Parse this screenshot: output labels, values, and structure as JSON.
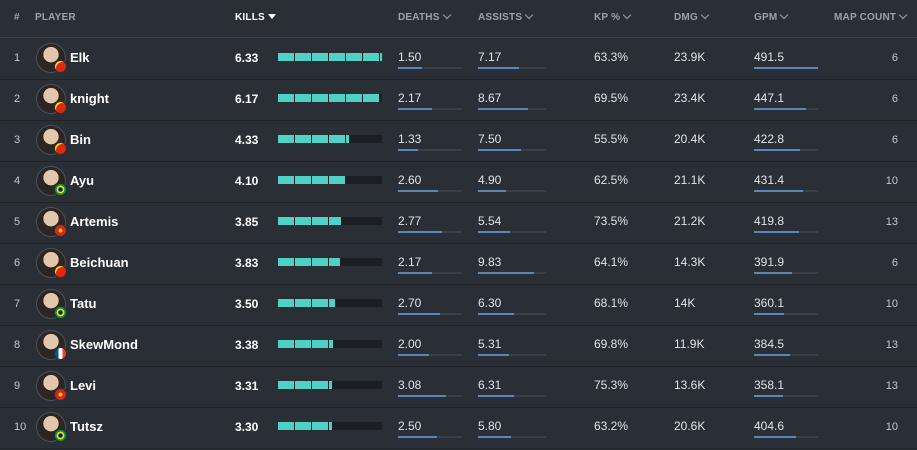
{
  "headers": {
    "rank": "#",
    "player": "PLAYER",
    "kills": "KILLS",
    "deaths": "DEATHS",
    "assists": "ASSISTS",
    "kp": "KP %",
    "dmg": "DMG",
    "gpm": "GPM",
    "map_count": "MAP COUNT"
  },
  "sort": {
    "column": "kills",
    "direction": "descending"
  },
  "colors": {
    "kills_bar": "#4fd1c5",
    "stat_bar": "#5b86b8",
    "background": "#2a2f36"
  },
  "rows": [
    {
      "rank": "1",
      "player": "Elk",
      "flag": "china-flag-icon",
      "kills": "6.33",
      "deaths": "1.50",
      "assists": "7.17",
      "kp": "63.3%",
      "dmg": "23.9K",
      "gpm": "491.5",
      "map_count": "6",
      "kills_fill": 1.0,
      "deaths_fill": 0.37,
      "assists_fill": 0.6,
      "gpm_fill": 1.0
    },
    {
      "rank": "2",
      "player": "knight",
      "flag": "china-flag-icon",
      "kills": "6.17",
      "deaths": "2.17",
      "assists": "8.67",
      "kp": "69.5%",
      "dmg": "23.4K",
      "gpm": "447.1",
      "map_count": "6",
      "kills_fill": 0.97,
      "deaths_fill": 0.53,
      "assists_fill": 0.73,
      "gpm_fill": 0.82
    },
    {
      "rank": "3",
      "player": "Bin",
      "flag": "china-flag-icon",
      "kills": "4.33",
      "deaths": "1.33",
      "assists": "7.50",
      "kp": "55.5%",
      "dmg": "20.4K",
      "gpm": "422.8",
      "map_count": "6",
      "kills_fill": 0.68,
      "deaths_fill": 0.32,
      "assists_fill": 0.63,
      "gpm_fill": 0.72
    },
    {
      "rank": "4",
      "player": "Ayu",
      "flag": "brazil-flag-icon",
      "kills": "4.10",
      "deaths": "2.60",
      "assists": "4.90",
      "kp": "62.5%",
      "dmg": "21.1K",
      "gpm": "431.4",
      "map_count": "10",
      "kills_fill": 0.65,
      "deaths_fill": 0.63,
      "assists_fill": 0.41,
      "gpm_fill": 0.76
    },
    {
      "rank": "5",
      "player": "Artemis",
      "flag": "vietnam-flag-icon",
      "kills": "3.85",
      "deaths": "2.77",
      "assists": "5.54",
      "kp": "73.5%",
      "dmg": "21.2K",
      "gpm": "419.8",
      "map_count": "13",
      "kills_fill": 0.61,
      "deaths_fill": 0.68,
      "assists_fill": 0.47,
      "gpm_fill": 0.71
    },
    {
      "rank": "6",
      "player": "Beichuan",
      "flag": "china-flag-icon",
      "kills": "3.83",
      "deaths": "2.17",
      "assists": "9.83",
      "kp": "64.1%",
      "dmg": "14.3K",
      "gpm": "391.9",
      "map_count": "6",
      "kills_fill": 0.6,
      "deaths_fill": 0.53,
      "assists_fill": 0.83,
      "gpm_fill": 0.6
    },
    {
      "rank": "7",
      "player": "Tatu",
      "flag": "brazil-flag-icon",
      "kills": "3.50",
      "deaths": "2.70",
      "assists": "6.30",
      "kp": "68.1%",
      "dmg": "14K",
      "gpm": "360.1",
      "map_count": "10",
      "kills_fill": 0.55,
      "deaths_fill": 0.66,
      "assists_fill": 0.53,
      "gpm_fill": 0.47
    },
    {
      "rank": "8",
      "player": "SkewMond",
      "flag": "france-flag-icon",
      "kills": "3.38",
      "deaths": "2.00",
      "assists": "5.31",
      "kp": "69.8%",
      "dmg": "11.9K",
      "gpm": "384.5",
      "map_count": "13",
      "kills_fill": 0.53,
      "deaths_fill": 0.49,
      "assists_fill": 0.45,
      "gpm_fill": 0.57
    },
    {
      "rank": "9",
      "player": "Levi",
      "flag": "vietnam-flag-icon",
      "kills": "3.31",
      "deaths": "3.08",
      "assists": "6.31",
      "kp": "75.3%",
      "dmg": "13.6K",
      "gpm": "358.1",
      "map_count": "13",
      "kills_fill": 0.52,
      "deaths_fill": 0.75,
      "assists_fill": 0.53,
      "gpm_fill": 0.46
    },
    {
      "rank": "10",
      "player": "Tutsz",
      "flag": "brazil-flag-icon",
      "kills": "3.30",
      "deaths": "2.50",
      "assists": "5.80",
      "kp": "63.2%",
      "dmg": "20.6K",
      "gpm": "404.6",
      "map_count": "10",
      "kills_fill": 0.52,
      "deaths_fill": 0.61,
      "assists_fill": 0.49,
      "gpm_fill": 0.65
    }
  ]
}
